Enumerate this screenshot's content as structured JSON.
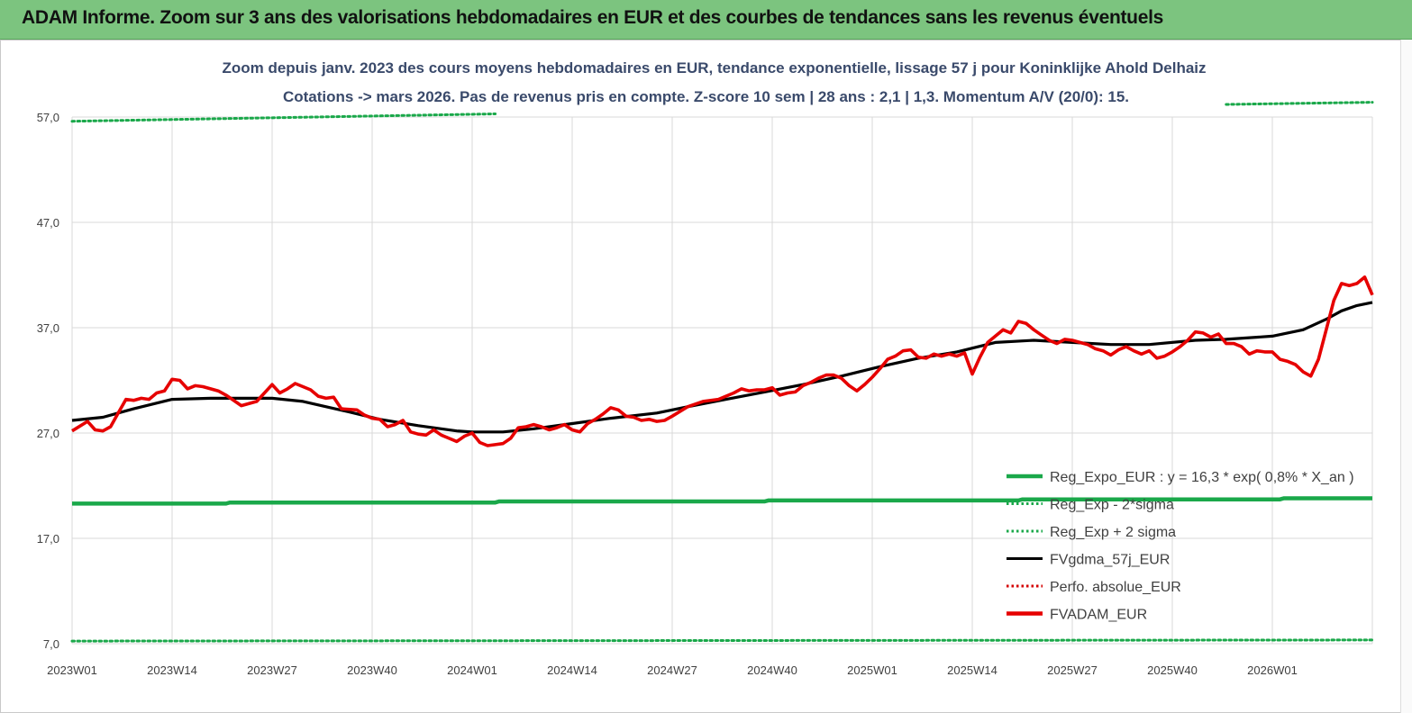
{
  "banner": {
    "title": "ADAM Informe. Zoom sur 3 ans des valorisations hebdomadaires en EUR et des courbes de tendances sans les revenus éventuels"
  },
  "colors": {
    "banner": "#7cc47f",
    "regression": "#1aa84a",
    "band": "#1aa84a",
    "fv_gdma": "#000000",
    "perfo": "#d40000",
    "fvadam": "#e60000",
    "grid": "#d9d9d9"
  },
  "chart_data": {
    "type": "line",
    "title": "Zoom depuis janv. 2023 des cours moyens hebdomadaires en EUR, tendance exponentielle, lissage 57 j pour Koninklijke Ahold Delhaiz",
    "subtitle": "Cotations -> mars 2026. Pas de revenus pris en compte. Z-score 10 sem | 28 ans : 2,1 | 1,3. Momentum A/V (20/0): 15.",
    "y_ticks": [
      "57,0",
      "47,0",
      "37,0",
      "27,0",
      "17,0",
      "7,0"
    ],
    "ylim": [
      7,
      57
    ],
    "x_ticks": [
      "2023W01",
      "2023W14",
      "2023W27",
      "2023W40",
      "2024W01",
      "2024W14",
      "2024W27",
      "2024W40",
      "2025W01",
      "2025W14",
      "2025W27",
      "2025W40",
      "2026W01"
    ],
    "x_tick_weeks": [
      0,
      13,
      26,
      39,
      52,
      65,
      78,
      91,
      104,
      117,
      130,
      143,
      156
    ],
    "n_weeks": 170,
    "legend": {
      "placement": "bottom-right",
      "entries": [
        {
          "key": "reg",
          "label": "Reg_Expo_EUR : y = 16,3 * exp( 0,8% *  X_an )",
          "style": "solid-thick",
          "color": "#1aa84a"
        },
        {
          "key": "minus2",
          "label": "Reg_Exp - 2*sigma",
          "style": "dotted",
          "color": "#1aa84a"
        },
        {
          "key": "plus2",
          "label": "Reg_Exp + 2 sigma",
          "style": "dotted",
          "color": "#1aa84a"
        },
        {
          "key": "gdma",
          "label": "FVgdma_57j_EUR",
          "style": "solid",
          "color": "#000000"
        },
        {
          "key": "perfo",
          "label": "Perfo. absolue_EUR",
          "style": "dotted",
          "color": "#d40000"
        },
        {
          "key": "fvadam",
          "label": "FVADAM_EUR",
          "style": "solid-thick",
          "color": "#e60000"
        }
      ]
    },
    "series": [
      {
        "name": "Reg_Expo_EUR",
        "key": "reg",
        "x": [
          0,
          20,
          20.5,
          55,
          55.5,
          90,
          90.5,
          123,
          123.5,
          157,
          157.5,
          169
        ],
        "values": [
          20.3,
          20.3,
          20.4,
          20.4,
          20.5,
          20.5,
          20.6,
          20.6,
          20.7,
          20.7,
          20.8,
          20.8
        ]
      },
      {
        "name": "Reg_Exp - 2*sigma",
        "key": "minus2",
        "x": [
          0,
          169
        ],
        "values": [
          7.25,
          7.35
        ]
      },
      {
        "name": "Reg_Exp + 2 sigma",
        "key": "plus2",
        "segments": [
          {
            "x": [
              0,
              55
            ],
            "values": [
              56.6,
              57.3
            ]
          },
          {
            "x": [
              150,
              169
            ],
            "values": [
              58.2,
              58.4
            ]
          }
        ]
      },
      {
        "name": "FVgdma_57j_EUR",
        "key": "gdma",
        "x": [
          0,
          4,
          8,
          13,
          18,
          26,
          30,
          36,
          40,
          45,
          50,
          52,
          56,
          60,
          65,
          70,
          76,
          80,
          85,
          90,
          95,
          100,
          105,
          110,
          115,
          120,
          125,
          130,
          135,
          140,
          146,
          150,
          156,
          160,
          163,
          165,
          167,
          169
        ],
        "values": [
          28.2,
          28.5,
          29.3,
          30.2,
          30.3,
          30.3,
          30.0,
          29.0,
          28.3,
          27.7,
          27.2,
          27.1,
          27.1,
          27.4,
          27.9,
          28.4,
          28.9,
          29.5,
          30.2,
          30.9,
          31.6,
          32.4,
          33.3,
          34.1,
          34.7,
          35.6,
          35.8,
          35.6,
          35.4,
          35.4,
          35.8,
          35.9,
          36.2,
          36.8,
          37.8,
          38.6,
          39.1,
          39.4
        ]
      },
      {
        "name": "FVADAM_EUR",
        "key": "fvadam",
        "x": [
          0,
          2,
          3,
          4,
          5,
          6,
          7,
          8,
          9,
          10,
          11,
          12,
          13,
          14,
          15,
          16,
          17,
          18,
          19,
          20,
          22,
          24,
          26,
          27,
          28,
          29,
          30,
          31,
          32,
          33,
          34,
          35,
          37,
          38,
          39,
          40,
          41,
          42,
          43,
          44,
          45,
          46,
          47,
          48,
          49,
          50,
          51,
          52,
          53,
          54,
          55,
          56,
          57,
          58,
          59,
          60,
          61,
          62,
          63,
          64,
          65,
          66,
          67,
          68,
          69,
          70,
          71,
          72,
          73,
          74,
          75,
          76,
          77,
          78,
          80,
          82,
          84,
          86,
          87,
          88,
          89,
          90,
          91,
          92,
          93,
          94,
          95,
          96,
          97,
          98,
          99,
          100,
          101,
          102,
          103,
          104,
          105,
          106,
          107,
          108,
          109,
          110,
          111,
          112,
          113,
          114,
          115,
          116,
          117,
          118,
          119,
          120,
          121,
          122,
          123,
          124,
          125,
          126,
          127,
          128,
          129,
          130,
          131,
          132,
          133,
          134,
          135,
          136,
          137,
          138,
          139,
          140,
          141,
          142,
          143,
          144,
          145,
          146,
          147,
          148,
          149,
          150,
          151,
          152,
          153,
          154,
          155,
          156,
          157,
          158,
          159,
          160,
          161,
          162,
          163,
          164,
          165,
          166,
          167,
          168,
          169
        ],
        "values": [
          27.2,
          28.1,
          27.3,
          27.2,
          27.6,
          28.9,
          30.2,
          30.1,
          30.3,
          30.2,
          30.8,
          31.0,
          32.1,
          32.0,
          31.2,
          31.5,
          31.4,
          31.2,
          31.0,
          30.6,
          29.6,
          30.0,
          31.6,
          30.8,
          31.2,
          31.7,
          31.4,
          31.1,
          30.5,
          30.3,
          30.4,
          29.3,
          29.2,
          28.7,
          28.4,
          28.3,
          27.6,
          27.8,
          28.2,
          27.1,
          26.9,
          26.8,
          27.3,
          26.8,
          26.5,
          26.2,
          26.7,
          27.0,
          26.1,
          25.8,
          25.9,
          26.0,
          26.5,
          27.5,
          27.6,
          27.8,
          27.6,
          27.3,
          27.5,
          27.8,
          27.3,
          27.1,
          27.9,
          28.3,
          28.8,
          29.4,
          29.2,
          28.6,
          28.5,
          28.2,
          28.3,
          28.1,
          28.2,
          28.6,
          29.5,
          30.0,
          30.2,
          30.8,
          31.2,
          31.0,
          31.1,
          31.1,
          31.3,
          30.6,
          30.8,
          30.9,
          31.5,
          31.8,
          32.2,
          32.5,
          32.5,
          32.2,
          31.5,
          31.0,
          31.6,
          32.3,
          33.1,
          34.0,
          34.3,
          34.8,
          34.9,
          34.2,
          34.1,
          34.5,
          34.3,
          34.5,
          34.3,
          34.6,
          32.6,
          34.2,
          35.6,
          36.2,
          36.8,
          36.5,
          37.6,
          37.4,
          36.8,
          36.3,
          35.8,
          35.5,
          35.9,
          35.8,
          35.6,
          35.4,
          35.0,
          34.8,
          34.4,
          34.9,
          35.2,
          34.8,
          34.5,
          34.8,
          34.1,
          34.3,
          34.7,
          35.2,
          35.8,
          36.6,
          36.5,
          36.1,
          36.4,
          35.5,
          35.5,
          35.2,
          34.5,
          34.8,
          34.7,
          34.7,
          34.0,
          33.8,
          33.5,
          32.8,
          32.4,
          34.0,
          36.8,
          39.6,
          41.2,
          41.0,
          41.2,
          41.8,
          40.1
        ]
      }
    ]
  }
}
